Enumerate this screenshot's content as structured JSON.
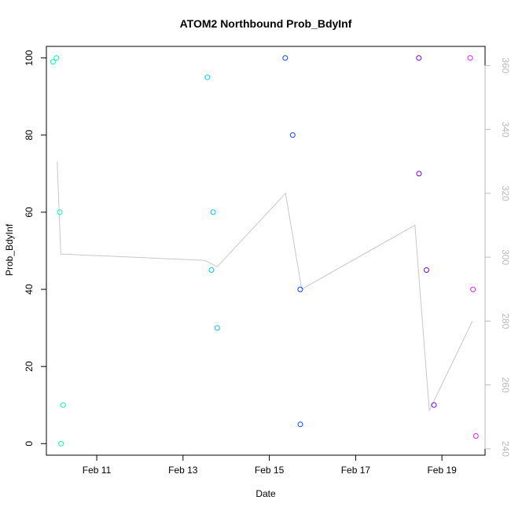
{
  "chart_data": {
    "type": "scatter",
    "title": "ATOM2 Northbound Prob_BdyInf",
    "xlabel": "Date",
    "ylabel": "Prob_BdyInf",
    "x_axis": {
      "unit": "days",
      "range": [
        "2010-02-09T20:00",
        "2010-02-19T23:59"
      ],
      "ticks": [
        "Feb 11",
        "Feb 13",
        "Feb 15",
        "Feb 17",
        "Feb 19"
      ],
      "tick_dates": [
        "2010-02-11",
        "2010-02-13",
        "2010-02-15",
        "2010-02-17",
        "2010-02-19"
      ]
    },
    "ylim": [
      -3,
      103
    ],
    "yticks": [
      0,
      20,
      40,
      60,
      80,
      100
    ],
    "y2lim": [
      238,
      366
    ],
    "y2ticks": [
      240,
      260,
      280,
      300,
      320,
      340,
      360
    ],
    "grid": false,
    "legend": "none",
    "point_color_scale": [
      "#00ffaa",
      "#00c8ff",
      "#0040ff",
      "#7000ff",
      "#e020ff"
    ],
    "secondary_line_color": "#c8c8c8",
    "series": [
      {
        "x": [
          "2010-02-10T01:00",
          "2010-02-10T02:00",
          "2010-02-10T03:00",
          "2010-02-10T04:00",
          "2010-02-10T05:00"
        ],
        "y": [
          99,
          100,
          60,
          10,
          0
        ],
        "color": "#00ffaa",
        "spread": 3
      },
      {
        "x": [
          "2010-02-13T13:00",
          "2010-02-13T15:00",
          "2010-02-13T17:00",
          "2010-02-13T19:00"
        ],
        "y": [
          95,
          60,
          45,
          30
        ],
        "color": "#00c8ff",
        "spread": 4
      },
      {
        "x": [
          "2010-02-15T10:00",
          "2010-02-15T13:00",
          "2010-02-15T16:00",
          "2010-02-15T19:00"
        ],
        "y": [
          100,
          80,
          40,
          5
        ],
        "color": "#0040ff",
        "spread": 4
      },
      {
        "x": [
          "2010-02-18T10:00",
          "2010-02-18T13:00",
          "2010-02-18T16:00",
          "2010-02-18T19:00"
        ],
        "y": [
          100,
          70,
          45,
          10
        ],
        "color": "#7000ff",
        "spread": 4
      },
      {
        "x": [
          "2010-02-19T16:00",
          "2010-02-19T17:00",
          "2010-02-19T18:00"
        ],
        "y": [
          100,
          40,
          2
        ],
        "color": "#e020ff",
        "spread": 2
      }
    ],
    "line_series": {
      "axis": "right",
      "x": [
        "2010-02-10T02:00",
        "2010-02-10T04:00",
        "2010-02-13T12:00",
        "2010-02-13T19:00",
        "2010-02-15T09:00",
        "2010-02-15T18:00",
        "2010-02-18T09:00",
        "2010-02-18T17:00",
        "2010-02-19T17:00"
      ],
      "y": [
        330,
        301,
        299,
        297,
        320,
        290,
        310,
        252,
        280
      ]
    }
  }
}
